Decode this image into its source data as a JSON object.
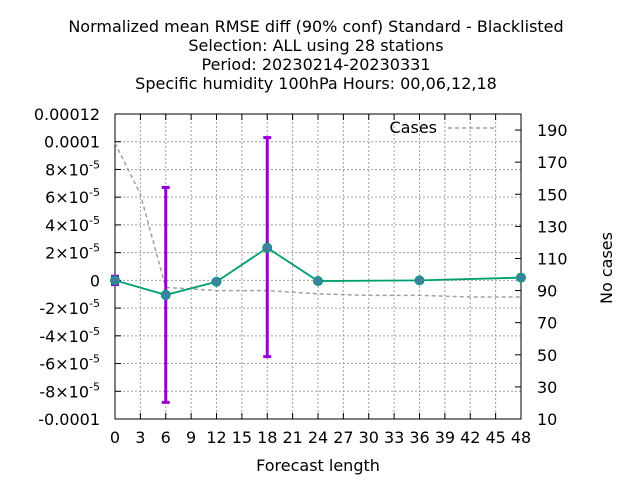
{
  "chart_data": {
    "type": "line",
    "title_lines": [
      "Normalized mean RMSE diff (90% conf) Standard - Blacklisted",
      "Selection: ALL using    28 stations",
      "Period: 20230214-20230331",
      "Specific humidity 100hPa   Hours:  00,06,12,18"
    ],
    "xlabel": "Forecast length",
    "ylabel": "",
    "y2label": "No cases",
    "xlim": [
      0,
      48
    ],
    "ylim": [
      -0.0001,
      0.00012
    ],
    "y2lim": [
      10,
      200
    ],
    "x_ticks": [
      "0",
      "3",
      "6",
      "9",
      "12",
      "15",
      "18",
      "21",
      "24",
      "27",
      "30",
      "33",
      "36",
      "39",
      "42",
      "45",
      "48"
    ],
    "y_ticks": [
      {
        "v": 0.00012,
        "mant": "0.00012",
        "exp": ""
      },
      {
        "v": 0.0001,
        "mant": "0.0001",
        "exp": ""
      },
      {
        "v": 8e-05,
        "mant": "8×10",
        "exp": "-5"
      },
      {
        "v": 6e-05,
        "mant": "6×10",
        "exp": "-5"
      },
      {
        "v": 4e-05,
        "mant": "4×10",
        "exp": "-5"
      },
      {
        "v": 2e-05,
        "mant": "2×10",
        "exp": "-5"
      },
      {
        "v": 0,
        "mant": "0",
        "exp": ""
      },
      {
        "v": -2e-05,
        "mant": "-2×10",
        "exp": "-5"
      },
      {
        "v": -4e-05,
        "mant": "-4×10",
        "exp": "-5"
      },
      {
        "v": -6e-05,
        "mant": "-6×10",
        "exp": "-5"
      },
      {
        "v": -8e-05,
        "mant": "-8×10",
        "exp": "-5"
      },
      {
        "v": -0.0001,
        "mant": "-0.0001",
        "exp": ""
      }
    ],
    "y2_ticks": [
      "10",
      "30",
      "50",
      "70",
      "90",
      "110",
      "130",
      "150",
      "170",
      "190"
    ],
    "grid": true,
    "legend_position": "top-right",
    "series": [
      {
        "kind": "rmse_diff",
        "color": "#009e73",
        "marker_color": "#3f7f9f",
        "x": [
          0,
          6,
          12,
          18,
          24,
          36,
          48
        ],
        "y": [
          0.0,
          -1.05e-05,
          -1e-06,
          2.35e-05,
          -5e-07,
          0.0,
          2e-06
        ]
      },
      {
        "kind": "confidence_interval",
        "color": "#9400d3",
        "x": [
          0,
          6,
          18
        ],
        "low": [
          -3e-06,
          -8.8e-05,
          -5.5e-05
        ],
        "high": [
          3e-06,
          6.7e-05,
          0.000103
        ]
      },
      {
        "name": "Cases",
        "kind": "cases",
        "axis": "y2",
        "color": "#a0a0a0",
        "x": [
          0,
          3,
          6,
          12,
          18,
          24,
          30,
          36,
          42,
          48
        ],
        "y": [
          182,
          150,
          92,
          90,
          90,
          88,
          87,
          87,
          86,
          86
        ]
      }
    ]
  }
}
